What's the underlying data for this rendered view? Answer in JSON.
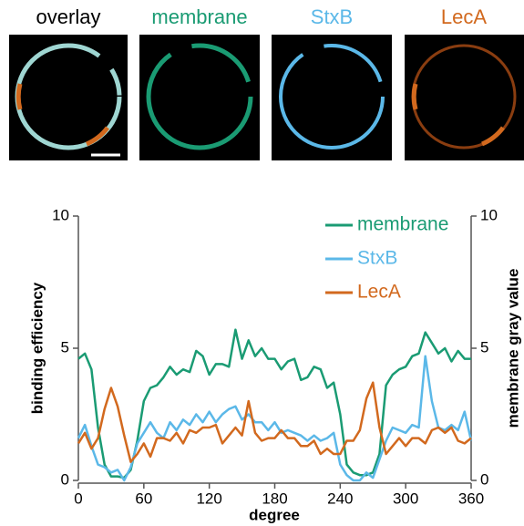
{
  "panels": [
    {
      "label": "overlay",
      "color": "#000000"
    },
    {
      "label": "membrane",
      "color": "#1a9b73"
    },
    {
      "label": "StxB",
      "color": "#5bb8e8"
    },
    {
      "label": "LecA",
      "color": "#d2691e"
    }
  ],
  "chart_data": {
    "type": "line",
    "xlabel": "degree",
    "ylabel": "binding efficiency",
    "y2label": "membrane gray value",
    "x": [
      0,
      6,
      12,
      18,
      24,
      30,
      36,
      42,
      48,
      54,
      60,
      66,
      72,
      78,
      84,
      90,
      96,
      102,
      108,
      114,
      120,
      126,
      132,
      138,
      144,
      150,
      156,
      162,
      168,
      174,
      180,
      186,
      192,
      198,
      204,
      210,
      216,
      222,
      228,
      234,
      240,
      246,
      252,
      258,
      264,
      270,
      276,
      282,
      288,
      294,
      300,
      306,
      312,
      318,
      324,
      330,
      336,
      342,
      348,
      354,
      360
    ],
    "xlim": [
      0,
      360
    ],
    "xticks": [
      0,
      60,
      120,
      180,
      240,
      300,
      360
    ],
    "ylim": [
      0,
      10
    ],
    "yticks": [
      0,
      5,
      10
    ],
    "y2lim": [
      0,
      10
    ],
    "y2ticks": [
      0,
      5,
      10
    ],
    "legend": "upper right",
    "series": [
      {
        "name": "membrane",
        "color": "#1a9b73",
        "axis": "y2",
        "values": [
          4.6,
          4.8,
          4.2,
          2.0,
          0.6,
          0.15,
          0.15,
          0.1,
          0.4,
          1.5,
          3.0,
          3.5,
          3.6,
          3.9,
          4.3,
          4.0,
          4.2,
          4.1,
          4.9,
          4.7,
          4.0,
          4.4,
          4.4,
          4.3,
          5.7,
          4.6,
          5.3,
          4.7,
          5.0,
          4.6,
          4.6,
          4.2,
          4.5,
          4.6,
          3.8,
          3.9,
          4.3,
          4.2,
          3.5,
          3.7,
          2.5,
          0.6,
          0.3,
          0.2,
          0.2,
          0.3,
          1.0,
          3.6,
          4.0,
          4.2,
          4.3,
          4.7,
          4.8,
          5.6,
          5.2,
          4.8,
          5.0,
          4.5,
          4.9,
          4.6,
          4.6
        ]
      },
      {
        "name": "StxB",
        "color": "#5bb8e8",
        "values": [
          1.6,
          2.1,
          1.3,
          0.6,
          0.5,
          0.3,
          0.4,
          0.0,
          0.5,
          1.4,
          1.8,
          2.2,
          1.8,
          1.6,
          2.2,
          1.9,
          2.3,
          2.1,
          2.5,
          2.2,
          2.6,
          2.2,
          2.5,
          2.7,
          2.8,
          2.3,
          2.5,
          2.2,
          2.2,
          1.9,
          2.2,
          1.8,
          1.9,
          1.8,
          1.7,
          1.5,
          1.7,
          1.5,
          1.6,
          1.8,
          0.6,
          0.2,
          0.0,
          0.0,
          0.3,
          0.1,
          0.8,
          1.5,
          2.0,
          1.9,
          1.8,
          2.1,
          2.0,
          4.7,
          3.0,
          2.0,
          1.9,
          2.1,
          1.9,
          2.6,
          1.5
        ]
      },
      {
        "name": "LecA",
        "color": "#d2691e",
        "values": [
          1.4,
          1.8,
          1.2,
          1.6,
          2.7,
          3.5,
          2.8,
          1.7,
          0.7,
          1.0,
          1.4,
          0.9,
          1.6,
          1.6,
          1.5,
          1.8,
          1.4,
          1.9,
          1.8,
          2.0,
          2.0,
          2.1,
          1.4,
          1.7,
          2.0,
          1.7,
          3.0,
          1.8,
          1.5,
          1.6,
          1.6,
          1.9,
          1.6,
          1.6,
          1.3,
          1.3,
          1.5,
          1.0,
          1.2,
          1.0,
          1.0,
          1.5,
          1.5,
          1.9,
          3.1,
          3.7,
          2.0,
          1.0,
          1.3,
          1.6,
          1.3,
          1.6,
          1.6,
          1.4,
          1.9,
          2.0,
          1.8,
          2.0,
          1.5,
          1.4,
          1.6
        ]
      }
    ]
  }
}
